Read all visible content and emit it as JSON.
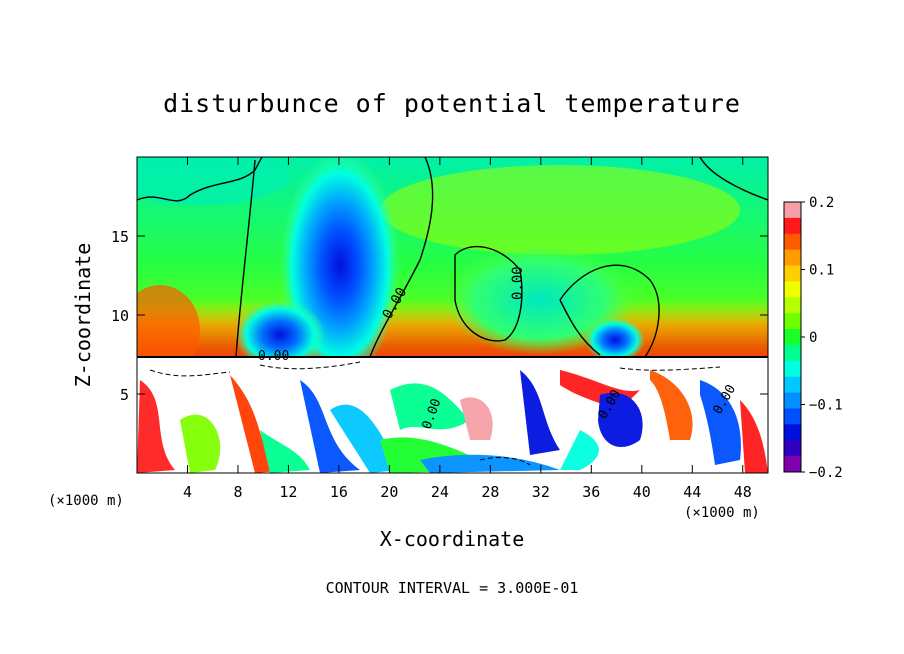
{
  "chart_data": {
    "type": "heatmap",
    "title": "disturbunce of potential temperature",
    "xlabel": "X-coordinate",
    "ylabel": "Z-coordinate",
    "x_unit_left": "(×1000 m)",
    "x_unit_right": "(×1000 m)",
    "xlim": [
      0,
      50
    ],
    "ylim": [
      0,
      20
    ],
    "x_ticks": [
      4,
      8,
      12,
      16,
      20,
      24,
      28,
      32,
      36,
      40,
      44,
      48
    ],
    "y_ticks": [
      5,
      10,
      15
    ],
    "colorbar": {
      "range": [
        -0.2,
        0.2
      ],
      "tick_labels": [
        "0.2",
        "0.1",
        "0",
        "−0.1",
        "−0.2"
      ],
      "tick_values": [
        0.2,
        0.1,
        0,
        -0.1,
        -0.2
      ],
      "colors": [
        "#f5a0a8",
        "#ff1a1a",
        "#ff5a00",
        "#ff9c00",
        "#ffd000",
        "#f0ff00",
        "#b4ff00",
        "#70ff00",
        "#18ff2a",
        "#00ff90",
        "#00ffe0",
        "#00c8ff",
        "#0090ff",
        "#0050ff",
        "#0010e0",
        "#3000c0",
        "#8000b0"
      ]
    },
    "contour_interval_text": "CONTOUR INTERVAL = 3.000E-01",
    "contour_labels": [
      "0.00",
      "0.00",
      "0.00",
      "0.00",
      "0.00",
      "0.00"
    ],
    "grid": false
  }
}
